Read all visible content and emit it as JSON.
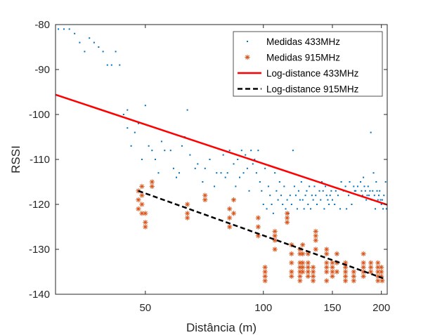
{
  "chart_data": {
    "type": "scatter",
    "title": "",
    "xlabel": "Distância (m)",
    "ylabel": "RSSI",
    "xscale": "log",
    "xlim": [
      29.5,
      207
    ],
    "ylim": [
      -140,
      -80
    ],
    "xticks": [
      50,
      100,
      150,
      200
    ],
    "yticks": [
      -140,
      -130,
      -120,
      -110,
      -100,
      -90,
      -80
    ],
    "grid": false,
    "legend_position": "top-right",
    "series": [
      {
        "name": "Medidas 433MHz",
        "kind": "points",
        "marker": "dot",
        "color": "#0072BD",
        "points": [
          [
            30,
            -81
          ],
          [
            31,
            -81
          ],
          [
            32,
            -81
          ],
          [
            33,
            -82
          ],
          [
            34,
            -84
          ],
          [
            35,
            -86
          ],
          [
            36,
            -83
          ],
          [
            37,
            -84
          ],
          [
            38,
            -85
          ],
          [
            39,
            -86
          ],
          [
            40,
            -89
          ],
          [
            41,
            -89
          ],
          [
            42,
            -86
          ],
          [
            43,
            -89
          ],
          [
            44,
            -100
          ],
          [
            45,
            -99
          ],
          [
            45,
            -103
          ],
          [
            46,
            -107
          ],
          [
            47,
            -104
          ],
          [
            48,
            -102
          ],
          [
            49,
            -110
          ],
          [
            50,
            -98
          ],
          [
            51,
            -107
          ],
          [
            52,
            -108
          ],
          [
            53,
            -110
          ],
          [
            54,
            -113
          ],
          [
            55,
            -106
          ],
          [
            56,
            -108
          ],
          [
            58,
            -108
          ],
          [
            59,
            -112
          ],
          [
            60,
            -114
          ],
          [
            61,
            -113
          ],
          [
            62,
            -107
          ],
          [
            63,
            -105
          ],
          [
            64,
            -99
          ],
          [
            65,
            -109
          ],
          [
            67,
            -112
          ],
          [
            68,
            -111
          ],
          [
            70,
            -115
          ],
          [
            71,
            -112
          ],
          [
            73,
            -110
          ],
          [
            75,
            -116
          ],
          [
            76,
            -113
          ],
          [
            78,
            -113
          ],
          [
            79,
            -109
          ],
          [
            80,
            -114
          ],
          [
            81,
            -113
          ],
          [
            82,
            -108
          ],
          [
            84,
            -111
          ],
          [
            85,
            -116
          ],
          [
            86,
            -110
          ],
          [
            87,
            -114
          ],
          [
            88,
            -108
          ],
          [
            89,
            -113
          ],
          [
            90,
            -109
          ],
          [
            91,
            -112
          ],
          [
            92,
            -117
          ],
          [
            93,
            -108
          ],
          [
            94,
            -111
          ],
          [
            95,
            -110
          ],
          [
            96,
            -113
          ],
          [
            97,
            -108
          ],
          [
            98,
            -115
          ],
          [
            99,
            -117
          ],
          [
            100,
            -120
          ],
          [
            101,
            -112
          ],
          [
            102,
            -121
          ],
          [
            103,
            -116
          ],
          [
            104,
            -118
          ],
          [
            105,
            -120
          ],
          [
            106,
            -122
          ],
          [
            107,
            -113
          ],
          [
            108,
            -117
          ],
          [
            109,
            -119
          ],
          [
            110,
            -115
          ],
          [
            111,
            -118
          ],
          [
            112,
            -120
          ],
          [
            113,
            -116
          ],
          [
            114,
            -121
          ],
          [
            115,
            -119
          ],
          [
            116,
            -122
          ],
          [
            117,
            -118
          ],
          [
            118,
            -120
          ],
          [
            119,
            -108
          ],
          [
            120,
            -116
          ],
          [
            121,
            -118
          ],
          [
            122,
            -121
          ],
          [
            123,
            -117
          ],
          [
            124,
            -119
          ],
          [
            125,
            -115
          ],
          [
            126,
            -119
          ],
          [
            127,
            -121
          ],
          [
            128,
            -118
          ],
          [
            129,
            -117
          ],
          [
            130,
            -120
          ],
          [
            131,
            -116
          ],
          [
            132,
            -121
          ],
          [
            133,
            -118
          ],
          [
            134,
            -119
          ],
          [
            135,
            -116
          ],
          [
            136,
            -118
          ],
          [
            137,
            -120
          ],
          [
            138,
            -115
          ],
          [
            139,
            -117
          ],
          [
            140,
            -119
          ],
          [
            141,
            -115
          ],
          [
            142,
            -117
          ],
          [
            143,
            -121
          ],
          [
            144,
            -116
          ],
          [
            145,
            -118
          ],
          [
            146,
            -119
          ],
          [
            147,
            -120
          ],
          [
            148,
            -118
          ],
          [
            149,
            -117
          ],
          [
            150,
            -119
          ],
          [
            152,
            -120
          ],
          [
            153,
            -117
          ],
          [
            155,
            -118
          ],
          [
            157,
            -121
          ],
          [
            158,
            -115
          ],
          [
            160,
            -117
          ],
          [
            162,
            -116
          ],
          [
            163,
            -121
          ],
          [
            165,
            -118
          ],
          [
            166,
            -115
          ],
          [
            168,
            -120
          ],
          [
            170,
            -116
          ],
          [
            171,
            -117
          ],
          [
            172,
            -117
          ],
          [
            174,
            -116
          ],
          [
            175,
            -118
          ],
          [
            177,
            -115
          ],
          [
            178,
            -117
          ],
          [
            179,
            -118
          ],
          [
            180,
            -114
          ],
          [
            181,
            -116
          ],
          [
            182,
            -117
          ],
          [
            183,
            -119
          ],
          [
            184,
            -118
          ],
          [
            185,
            -116
          ],
          [
            186,
            -118
          ],
          [
            187,
            -117
          ],
          [
            188,
            -104
          ],
          [
            189,
            -119
          ],
          [
            190,
            -117
          ],
          [
            191,
            -113
          ],
          [
            192,
            -118
          ],
          [
            193,
            -121
          ],
          [
            194,
            -115
          ],
          [
            195,
            -117
          ],
          [
            196,
            -119
          ],
          [
            197,
            -118
          ],
          [
            198,
            -117
          ],
          [
            199,
            -119
          ],
          [
            200,
            -120
          ],
          [
            201,
            -119
          ],
          [
            202,
            -121
          ],
          [
            203,
            -118
          ],
          [
            205,
            -115
          ],
          [
            206,
            -121
          ]
        ]
      },
      {
        "name": "Medidas 915MHz",
        "kind": "points",
        "marker": "star",
        "color": "#D95319",
        "points": [
          [
            48,
            -117
          ],
          [
            48,
            -119
          ],
          [
            48,
            -121
          ],
          [
            49,
            -116
          ],
          [
            49,
            -118
          ],
          [
            49,
            -120
          ],
          [
            49,
            -122
          ],
          [
            50,
            -122
          ],
          [
            50,
            -124
          ],
          [
            50,
            -125
          ],
          [
            52,
            -115
          ],
          [
            52,
            -116
          ],
          [
            64,
            -120
          ],
          [
            64,
            -122
          ],
          [
            64,
            -123
          ],
          [
            71,
            -118
          ],
          [
            71,
            -119
          ],
          [
            82,
            -121
          ],
          [
            82,
            -123
          ],
          [
            82,
            -125
          ],
          [
            84,
            -119
          ],
          [
            84,
            -122
          ],
          [
            97,
            -123
          ],
          [
            97,
            -125
          ],
          [
            97,
            -127
          ],
          [
            101,
            -134
          ],
          [
            101,
            -135
          ],
          [
            101,
            -136
          ],
          [
            101,
            -137
          ],
          [
            107,
            -126
          ],
          [
            107,
            -127
          ],
          [
            107,
            -128
          ],
          [
            107,
            -130
          ],
          [
            115,
            -122
          ],
          [
            115,
            -123
          ],
          [
            115,
            -124
          ],
          [
            118,
            -129
          ],
          [
            118,
            -131
          ],
          [
            118,
            -133
          ],
          [
            118,
            -135
          ],
          [
            118,
            -136
          ],
          [
            124,
            -130
          ],
          [
            124,
            -131
          ],
          [
            124,
            -133
          ],
          [
            124,
            -134
          ],
          [
            124,
            -135
          ],
          [
            124,
            -136
          ],
          [
            124,
            -137
          ],
          [
            126,
            -129
          ],
          [
            126,
            -131
          ],
          [
            126,
            -133
          ],
          [
            126,
            -134
          ],
          [
            126,
            -135
          ],
          [
            130,
            -131
          ],
          [
            130,
            -133
          ],
          [
            130,
            -134
          ],
          [
            130,
            -135
          ],
          [
            130,
            -136
          ],
          [
            134,
            -134
          ],
          [
            134,
            -135
          ],
          [
            134,
            -136
          ],
          [
            134,
            -137
          ],
          [
            136,
            -126
          ],
          [
            136,
            -127
          ],
          [
            136,
            -128
          ],
          [
            136,
            -130
          ],
          [
            145,
            -130
          ],
          [
            145,
            -131
          ],
          [
            145,
            -133
          ],
          [
            145,
            -134
          ],
          [
            145,
            -135
          ],
          [
            145,
            -137
          ],
          [
            150,
            -133
          ],
          [
            150,
            -134
          ],
          [
            150,
            -135
          ],
          [
            150,
            -136
          ],
          [
            154,
            -131
          ],
          [
            154,
            -133
          ],
          [
            154,
            -135
          ],
          [
            162,
            -133
          ],
          [
            162,
            -134
          ],
          [
            162,
            -135
          ],
          [
            162,
            -136
          ],
          [
            162,
            -137
          ],
          [
            170,
            -135
          ],
          [
            170,
            -136
          ],
          [
            170,
            -137
          ],
          [
            180,
            -131
          ],
          [
            180,
            -133
          ],
          [
            180,
            -134
          ],
          [
            180,
            -135
          ],
          [
            180,
            -136
          ],
          [
            188,
            -133
          ],
          [
            188,
            -134
          ],
          [
            188,
            -135
          ],
          [
            196,
            -133
          ],
          [
            196,
            -134
          ],
          [
            196,
            -135
          ],
          [
            196,
            -136
          ],
          [
            196,
            -137
          ],
          [
            200,
            -134
          ],
          [
            200,
            -135
          ],
          [
            200,
            -136
          ],
          [
            201,
            -137
          ]
        ]
      },
      {
        "name": "Log-distance 433MHz",
        "kind": "line",
        "color": "#FF0000",
        "dash": "solid",
        "points": [
          [
            29.5,
            -95.6
          ],
          [
            207,
            -120.1
          ]
        ]
      },
      {
        "name": "Log-distance 915MHz",
        "kind": "line",
        "color": "#000000",
        "dash": "dashed",
        "points": [
          [
            48,
            -117
          ],
          [
            203,
            -136.5
          ]
        ]
      }
    ]
  }
}
